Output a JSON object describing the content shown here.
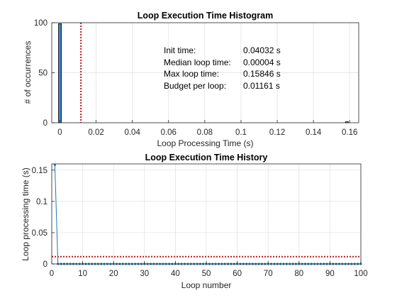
{
  "chart_data": [
    {
      "type": "bar",
      "title": "Loop Execution Time Histogram",
      "xlabel": "Loop Processing Time (s)",
      "ylabel": "# of occurrences",
      "xlim": [
        -0.0045,
        0.165
      ],
      "ylim": [
        0,
        100
      ],
      "xticks": [
        "0",
        "0.02",
        "0.04",
        "0.06",
        "0.08",
        "0.1",
        "0.12",
        "0.14",
        "0.16"
      ],
      "xtick_values": [
        0,
        0.02,
        0.04,
        0.06,
        0.08,
        0.1,
        0.12,
        0.14,
        0.16
      ],
      "yticks": [
        "0",
        "50",
        "100"
      ],
      "ytick_values": [
        0,
        50,
        100
      ],
      "grid": true,
      "bars": [
        {
          "x": 4e-05,
          "width": 0.0016,
          "value": 99
        },
        {
          "x": 0.15846,
          "width": 0.0016,
          "value": 1
        }
      ],
      "bar_color": "#3d84c6",
      "budget_line": {
        "x": 0.01161,
        "color": "#c01818",
        "style": "dotted"
      },
      "annotations": [
        {
          "label": "Init time:",
          "value": "0.04032 s"
        },
        {
          "label": "Median loop time:",
          "value": "0.00004 s"
        },
        {
          "label": "Max loop time:",
          "value": "0.15846 s"
        },
        {
          "label": "Budget per loop:",
          "value": "0.01161 s"
        }
      ]
    },
    {
      "type": "line",
      "title": "Loop Execution Time History",
      "xlabel": "Loop number",
      "ylabel": "Loop processing time (s)",
      "xlim": [
        0,
        100
      ],
      "ylim": [
        0,
        0.16
      ],
      "xticks": [
        "0",
        "10",
        "20",
        "30",
        "40",
        "50",
        "60",
        "70",
        "80",
        "90",
        "100"
      ],
      "xtick_values": [
        0,
        10,
        20,
        30,
        40,
        50,
        60,
        70,
        80,
        90,
        100
      ],
      "yticks": [
        "0",
        "0.05",
        "0.1",
        "0.15"
      ],
      "ytick_values": [
        0,
        0.05,
        0.1,
        0.15
      ],
      "grid": true,
      "series": [
        {
          "color": "#1f77b4",
          "x": [
            1,
            2,
            3,
            4,
            5,
            6,
            7,
            8,
            9,
            10,
            11,
            12,
            13,
            14,
            15,
            16,
            17,
            18,
            19,
            20,
            21,
            22,
            23,
            24,
            25,
            26,
            27,
            28,
            29,
            30,
            31,
            32,
            33,
            34,
            35,
            36,
            37,
            38,
            39,
            40,
            41,
            42,
            43,
            44,
            45,
            46,
            47,
            48,
            49,
            50,
            51,
            52,
            53,
            54,
            55,
            56,
            57,
            58,
            59,
            60,
            61,
            62,
            63,
            64,
            65,
            66,
            67,
            68,
            69,
            70,
            71,
            72,
            73,
            74,
            75,
            76,
            77,
            78,
            79,
            80,
            81,
            82,
            83,
            84,
            85,
            86,
            87,
            88,
            89,
            90,
            91,
            92,
            93,
            94,
            95,
            96,
            97,
            98,
            99,
            100
          ],
          "y": [
            0.15846,
            4e-05,
            4e-05,
            4e-05,
            4e-05,
            4e-05,
            4e-05,
            4e-05,
            4e-05,
            4e-05,
            4e-05,
            4e-05,
            4e-05,
            4e-05,
            4e-05,
            4e-05,
            4e-05,
            4e-05,
            4e-05,
            4e-05,
            4e-05,
            4e-05,
            4e-05,
            4e-05,
            4e-05,
            4e-05,
            4e-05,
            4e-05,
            4e-05,
            4e-05,
            4e-05,
            4e-05,
            4e-05,
            4e-05,
            4e-05,
            4e-05,
            4e-05,
            4e-05,
            4e-05,
            4e-05,
            4e-05,
            4e-05,
            4e-05,
            4e-05,
            4e-05,
            4e-05,
            4e-05,
            4e-05,
            4e-05,
            4e-05,
            4e-05,
            4e-05,
            4e-05,
            4e-05,
            4e-05,
            4e-05,
            4e-05,
            4e-05,
            4e-05,
            4e-05,
            4e-05,
            4e-05,
            4e-05,
            4e-05,
            4e-05,
            4e-05,
            4e-05,
            4e-05,
            4e-05,
            4e-05,
            4e-05,
            4e-05,
            4e-05,
            4e-05,
            4e-05,
            4e-05,
            4e-05,
            4e-05,
            4e-05,
            4e-05,
            4e-05,
            4e-05,
            4e-05,
            4e-05,
            4e-05,
            4e-05,
            4e-05,
            4e-05,
            4e-05,
            4e-05,
            4e-05,
            4e-05,
            4e-05,
            4e-05,
            4e-05,
            4e-05,
            4e-05,
            4e-05,
            4e-05,
            4e-05
          ]
        }
      ],
      "budget_line": {
        "y": 0.01161,
        "color": "#c01818",
        "style": "dotted"
      }
    }
  ]
}
